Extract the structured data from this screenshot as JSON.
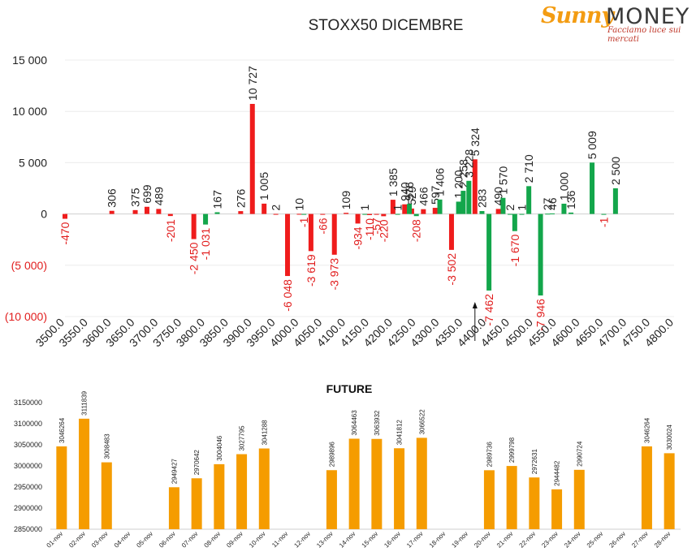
{
  "logo": {
    "word1": "Sunny",
    "word2": "MONEY",
    "tagline": "Facciamo luce sui mercati"
  },
  "chart_data": [
    {
      "type": "bar",
      "title": "STOXX50 DICEMBRE",
      "ylim": [
        -10000,
        15000
      ],
      "yticks": [
        {
          "value": 15000,
          "label": "15 000"
        },
        {
          "value": 10000,
          "label": "10 000"
        },
        {
          "value": 5000,
          "label": "5 000"
        },
        {
          "value": 0,
          "label": "0"
        },
        {
          "value": -5000,
          "label": "(5 000)"
        },
        {
          "value": -10000,
          "label": "(10 000)"
        }
      ],
      "xlim": [
        3500,
        4800
      ],
      "xticks": [
        "3500.0",
        "3550.0",
        "3600.0",
        "3650.0",
        "3700.0",
        "3750.0",
        "3800.0",
        "3850.0",
        "3900.0",
        "3950.0",
        "4000.0",
        "4050.0",
        "4100.0",
        "4150.0",
        "4200.0",
        "4250.0",
        "4300.0",
        "4350.0",
        "4400.0",
        "4450.0",
        "4500.0",
        "4550.0",
        "4600.0",
        "4650.0",
        "4700.0",
        "4750.0",
        "4800.0"
      ],
      "grid": true,
      "marker": {
        "x": 4375
      },
      "series": [
        {
          "color": "#ef1c1c",
          "points": [
            {
              "x": 3500,
              "y": -470,
              "label": "-470"
            },
            {
              "x": 3600,
              "y": 306,
              "label": "306"
            },
            {
              "x": 3650,
              "y": 375,
              "label": "375"
            },
            {
              "x": 3675,
              "y": 699,
              "label": "699"
            },
            {
              "x": 3700,
              "y": 489,
              "label": "489"
            },
            {
              "x": 3725,
              "y": -201,
              "label": "-201"
            },
            {
              "x": 3775,
              "y": -2450,
              "label": "-2 450"
            },
            {
              "x": 3875,
              "y": 276,
              "label": "276"
            },
            {
              "x": 3900,
              "y": 10727,
              "label": "10 727"
            },
            {
              "x": 3925,
              "y": 1005,
              "label": "1 005"
            },
            {
              "x": 3950,
              "y": 2,
              "label": "2"
            },
            {
              "x": 3975,
              "y": -6048,
              "label": "-6 048"
            },
            {
              "x": 4000,
              "y": 10,
              "label": "10"
            },
            {
              "x": 4025,
              "y": -3619,
              "label": "-3 619"
            },
            {
              "x": 4050,
              "y": -66,
              "label": "-66"
            },
            {
              "x": 4075,
              "y": -3973,
              "label": "-3 973"
            },
            {
              "x": 4100,
              "y": 109,
              "label": "109"
            },
            {
              "x": 4125,
              "y": -934,
              "label": "-934"
            },
            {
              "x": 4150,
              "y": -110,
              "label": "-110"
            },
            {
              "x": 4165,
              "y": -57,
              "label": "-57"
            },
            {
              "x": 4180,
              "y": -220,
              "label": "-220"
            },
            {
              "x": 4200,
              "y": 1385,
              "label": "1 385"
            },
            {
              "x": 4225,
              "y": 940,
              "label": "940"
            },
            {
              "x": 4240,
              "y": 529,
              "label": "529"
            },
            {
              "x": 4265,
              "y": 466,
              "label": "466"
            },
            {
              "x": 4290,
              "y": 597,
              "label": "597"
            },
            {
              "x": 4325,
              "y": -3502,
              "label": "-3 502"
            },
            {
              "x": 4375,
              "y": 5324,
              "label": "5 324"
            },
            {
              "x": 4425,
              "y": 490,
              "label": "490"
            }
          ]
        },
        {
          "color": "#13a64b",
          "points": [
            {
              "x": 3800,
              "y": -1031,
              "label": "-1 031"
            },
            {
              "x": 3825,
              "y": 167,
              "label": "167"
            },
            {
              "x": 4010,
              "y": -1,
              "label": "-1"
            },
            {
              "x": 4140,
              "y": 1,
              "label": "1"
            },
            {
              "x": 4210,
              "y": 1,
              "label": "1"
            },
            {
              "x": 4235,
              "y": 976,
              "label": "976"
            },
            {
              "x": 4250,
              "y": -208,
              "label": "-208"
            },
            {
              "x": 4300,
              "y": 1406,
              "label": "1 406"
            },
            {
              "x": 4340,
              "y": 1200,
              "label": "1 200"
            },
            {
              "x": 4350,
              "y": 2258,
              "label": "2 258"
            },
            {
              "x": 4362,
              "y": 3228,
              "label": "3 228"
            },
            {
              "x": 4390,
              "y": 283,
              "label": "283"
            },
            {
              "x": 4405,
              "y": -7462,
              "label": "-7 462"
            },
            {
              "x": 4435,
              "y": 1570,
              "label": "1 570"
            },
            {
              "x": 4450,
              "y": 2,
              "label": "2"
            },
            {
              "x": 4460,
              "y": -1670,
              "label": "-1 670"
            },
            {
              "x": 4475,
              "y": 1,
              "label": "1"
            },
            {
              "x": 4490,
              "y": 2710,
              "label": "2 710"
            },
            {
              "x": 4515,
              "y": -7946,
              "label": "-7 946"
            },
            {
              "x": 4530,
              "y": 27,
              "label": "27"
            },
            {
              "x": 4540,
              "y": 46,
              "label": "46"
            },
            {
              "x": 4565,
              "y": 1000,
              "label": "1 000"
            },
            {
              "x": 4580,
              "y": 136,
              "label": "136"
            },
            {
              "x": 4625,
              "y": 5009,
              "label": "5 009"
            },
            {
              "x": 4650,
              "y": -1,
              "label": "-1"
            },
            {
              "x": 4675,
              "y": 2500,
              "label": "2 500"
            }
          ]
        }
      ]
    },
    {
      "type": "bar",
      "title": "FUTURE",
      "ylim": [
        2850000,
        3150000
      ],
      "yticks": [
        "2850000",
        "2900000",
        "2950000",
        "3000000",
        "3050000",
        "3100000",
        "3150000"
      ],
      "color": "#f59c00",
      "categories": [
        "01-nov",
        "02-nov",
        "03-nov",
        "04-nov",
        "05-nov",
        "06-nov",
        "07-nov",
        "08-nov",
        "09-nov",
        "10-nov",
        "11-nov",
        "12-nov",
        "13-nov",
        "14-nov",
        "15-nov",
        "16-nov",
        "17-nov",
        "18-nov",
        "19-nov",
        "20-nov",
        "21-nov",
        "22-nov",
        "23-nov",
        "24-nov",
        "25-nov",
        "26-nov",
        "27-nov",
        "28-nov"
      ],
      "values": [
        3046264,
        3111839,
        3008483,
        null,
        null,
        2949427,
        2970642,
        3004046,
        3027795,
        3041288,
        null,
        null,
        2989896,
        3064463,
        3063932,
        3041812,
        3066522,
        null,
        null,
        2989736,
        2999798,
        2972631,
        2944482,
        2990724,
        null,
        null,
        3046264,
        3030024
      ],
      "labels": [
        "3046264",
        "3111839",
        "3008483",
        "",
        "",
        "2949427",
        "2970642",
        "3004046",
        "3027795",
        "3041288",
        "",
        "",
        "2989896",
        "3064463",
        "3063932",
        "3041812",
        "3066522",
        "",
        "",
        "2989736",
        "2999798",
        "2972631",
        "2944482",
        "2990724",
        "",
        "",
        "3046264",
        "3030024"
      ]
    }
  ]
}
